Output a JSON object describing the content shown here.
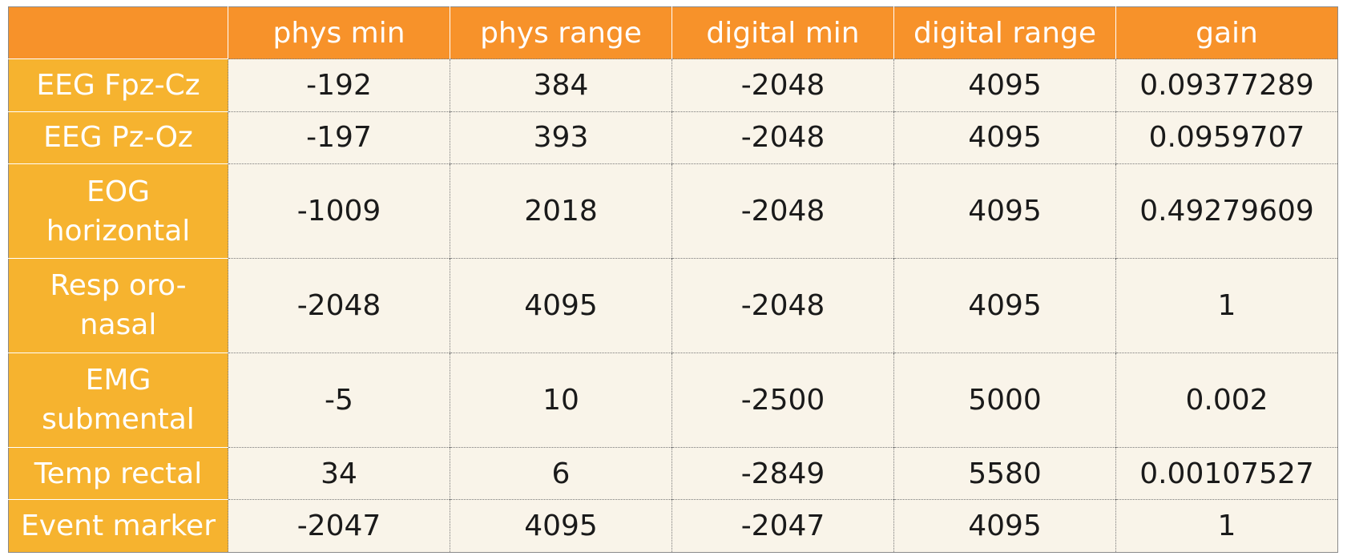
{
  "table": {
    "columns": [
      "",
      "phys min",
      "phys range",
      "digital min",
      "digital range",
      "gain"
    ],
    "rows": [
      {
        "label": "EEG Fpz-Cz",
        "cells": [
          "-192",
          "384",
          "-2048",
          "4095",
          "0.09377289"
        ]
      },
      {
        "label": "EEG Pz-Oz",
        "cells": [
          "-197",
          "393",
          "-2048",
          "4095",
          "0.0959707"
        ]
      },
      {
        "label": "EOG horizontal",
        "cells": [
          "-1009",
          "2018",
          "-2048",
          "4095",
          "0.49279609"
        ]
      },
      {
        "label": "Resp oro-nasal",
        "cells": [
          "-2048",
          "4095",
          "-2048",
          "4095",
          "1"
        ]
      },
      {
        "label": "EMG submental",
        "cells": [
          "-5",
          "10",
          "-2500",
          "5000",
          "0.002"
        ]
      },
      {
        "label": "Temp rectal",
        "cells": [
          "34",
          "6",
          "-2849",
          "5580",
          "0.00107527"
        ]
      },
      {
        "label": "Event marker",
        "cells": [
          "-2047",
          "4095",
          "-2047",
          "4095",
          "1"
        ]
      }
    ]
  },
  "colors": {
    "header_bg": "#f7922a",
    "row_label_bg": "#f6b32f",
    "cell_bg": "#f9f4e9",
    "header_text": "#ffffff",
    "cell_text": "#1a1a1a"
  }
}
